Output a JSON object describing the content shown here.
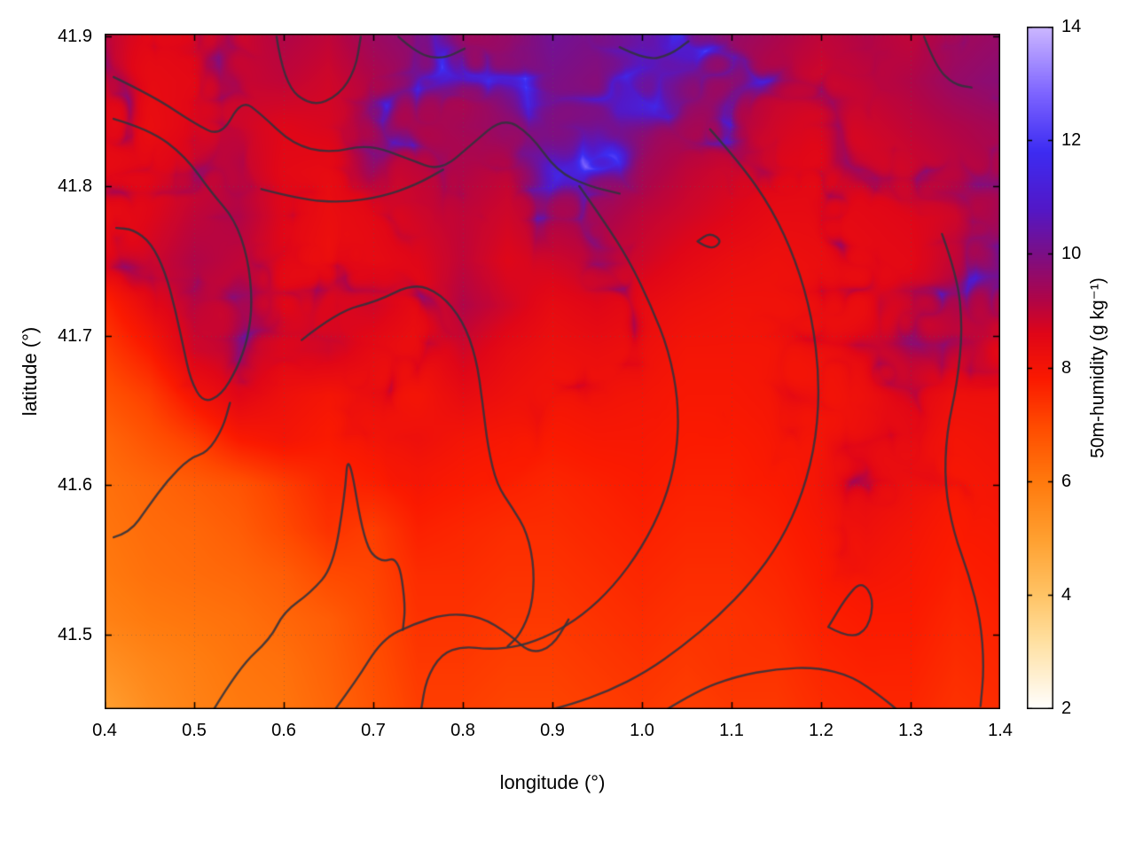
{
  "chart_data": {
    "type": "heatmap",
    "title": "",
    "xlabel": "longitude (°)",
    "ylabel": "latitude (°)",
    "colorbar_label": "50m-humidity (g kg⁻¹)",
    "xlim": [
      0.4,
      1.4
    ],
    "ylim": [
      41.45,
      41.902
    ],
    "clim": [
      2,
      14
    ],
    "grid": true,
    "xticks": [
      0.4,
      0.5,
      0.6,
      0.7,
      0.8,
      0.9,
      1.0,
      1.1,
      1.2,
      1.3,
      1.4
    ],
    "xtick_labels": [
      "0.4",
      "0.5",
      "0.6",
      "0.7",
      "0.8",
      "0.9",
      "1.0",
      "1.1",
      "1.2",
      "1.3",
      "1.4"
    ],
    "yticks": [
      41.5,
      41.6,
      41.7,
      41.8,
      41.9
    ],
    "ytick_labels": [
      "41.5",
      "41.6",
      "41.7",
      "41.8",
      "41.9"
    ],
    "cticks": [
      2,
      4,
      6,
      8,
      10,
      12,
      14
    ],
    "ctick_labels": [
      "2",
      "4",
      "6",
      "8",
      "10",
      "12",
      "14"
    ],
    "x": [
      0.4,
      0.45,
      0.5,
      0.55,
      0.6,
      0.65,
      0.7,
      0.75,
      0.8,
      0.85,
      0.9,
      0.95,
      1.0,
      1.05,
      1.1,
      1.15,
      1.2,
      1.25,
      1.3,
      1.35,
      1.4
    ],
    "y": [
      41.9,
      41.87,
      41.84,
      41.81,
      41.78,
      41.75,
      41.72,
      41.69,
      41.66,
      41.63,
      41.6,
      41.57,
      41.54,
      41.51,
      41.48,
      41.45
    ],
    "values": [
      [
        8.8,
        8.5,
        8.6,
        8.8,
        9.2,
        9.0,
        9.5,
        9.8,
        9.4,
        9.6,
        10.2,
        10.0,
        10.4,
        10.0,
        9.6,
        9.3,
        9.0,
        9.2,
        9.0,
        9.4,
        9.6
      ],
      [
        8.6,
        8.4,
        8.5,
        8.9,
        9.0,
        8.8,
        9.2,
        9.6,
        9.2,
        9.8,
        10.0,
        9.8,
        10.2,
        9.8,
        9.4,
        9.0,
        8.8,
        9.0,
        9.2,
        9.6,
        9.8
      ],
      [
        8.5,
        8.3,
        8.6,
        8.8,
        8.6,
        8.7,
        9.0,
        9.2,
        9.4,
        9.6,
        9.8,
        10.0,
        9.6,
        9.4,
        9.2,
        8.8,
        8.6,
        8.8,
        9.0,
        9.2,
        9.4
      ],
      [
        8.4,
        8.5,
        8.8,
        9.0,
        8.5,
        8.4,
        8.8,
        9.0,
        9.2,
        9.0,
        9.6,
        9.8,
        9.4,
        9.0,
        8.8,
        8.6,
        8.5,
        8.6,
        8.8,
        9.0,
        9.2
      ],
      [
        8.3,
        8.6,
        9.0,
        9.2,
        8.6,
        8.3,
        8.5,
        8.8,
        9.0,
        8.8,
        9.2,
        9.4,
        9.0,
        8.8,
        8.6,
        8.4,
        8.4,
        8.5,
        8.6,
        8.8,
        9.4
      ],
      [
        8.2,
        8.8,
        9.2,
        9.0,
        8.5,
        8.2,
        8.4,
        8.6,
        9.0,
        8.6,
        8.8,
        9.0,
        8.8,
        8.5,
        8.3,
        8.2,
        8.3,
        8.4,
        8.5,
        9.0,
        9.6
      ],
      [
        7.6,
        8.4,
        9.0,
        8.8,
        8.4,
        8.6,
        8.8,
        8.4,
        9.2,
        8.8,
        8.4,
        8.6,
        8.4,
        8.2,
        8.1,
        8.1,
        8.2,
        8.3,
        8.6,
        9.2,
        9.0
      ],
      [
        7.2,
        7.8,
        8.8,
        9.0,
        8.6,
        8.8,
        8.4,
        8.2,
        8.8,
        8.4,
        8.2,
        8.3,
        8.2,
        8.0,
        8.0,
        8.0,
        8.1,
        8.3,
        8.8,
        8.8,
        8.4
      ],
      [
        6.8,
        7.2,
        8.0,
        8.6,
        8.2,
        8.0,
        8.2,
        8.0,
        8.4,
        8.2,
        8.0,
        8.1,
        8.0,
        7.9,
        7.9,
        8.0,
        8.0,
        8.2,
        8.6,
        8.2,
        8.2
      ],
      [
        6.4,
        6.8,
        7.2,
        7.8,
        8.0,
        7.8,
        8.0,
        8.2,
        8.0,
        7.9,
        7.8,
        7.9,
        7.9,
        7.8,
        7.8,
        7.9,
        8.0,
        8.3,
        8.4,
        8.0,
        8.1
      ],
      [
        6.2,
        6.4,
        6.6,
        6.8,
        7.2,
        7.6,
        7.7,
        7.9,
        7.8,
        7.7,
        7.6,
        7.7,
        7.8,
        7.7,
        7.7,
        7.8,
        8.0,
        8.4,
        8.2,
        7.9,
        8.0
      ],
      [
        6.1,
        6.3,
        6.4,
        6.6,
        7.0,
        7.4,
        7.2,
        7.7,
        7.6,
        7.5,
        7.5,
        7.6,
        7.7,
        7.6,
        7.6,
        7.7,
        7.9,
        8.2,
        8.0,
        7.8,
        7.9
      ],
      [
        6.0,
        6.2,
        6.3,
        6.4,
        6.6,
        7.0,
        7.1,
        7.5,
        7.5,
        7.4,
        7.4,
        7.5,
        7.6,
        7.5,
        7.5,
        7.6,
        7.8,
        8.0,
        7.9,
        7.7,
        7.8
      ],
      [
        5.8,
        6.0,
        6.1,
        6.2,
        6.4,
        6.6,
        7.0,
        7.4,
        7.4,
        7.3,
        7.3,
        7.4,
        7.5,
        7.4,
        7.4,
        7.5,
        7.7,
        7.8,
        7.8,
        7.6,
        7.7
      ],
      [
        5.4,
        5.7,
        5.9,
        6.1,
        6.2,
        6.5,
        6.9,
        7.3,
        7.3,
        7.2,
        7.2,
        7.3,
        7.4,
        7.3,
        7.4,
        7.4,
        7.6,
        7.7,
        7.7,
        7.5,
        7.6
      ],
      [
        5.0,
        5.5,
        5.8,
        6.0,
        6.1,
        6.4,
        6.8,
        7.2,
        7.2,
        7.1,
        7.1,
        7.2,
        7.3,
        7.2,
        7.3,
        7.3,
        7.5,
        7.6,
        7.6,
        7.4,
        7.5
      ]
    ],
    "palette": [
      [
        2.0,
        "#ffffff"
      ],
      [
        3.2,
        "#ffe0a0"
      ],
      [
        4.0,
        "#ffc466"
      ],
      [
        5.0,
        "#ffa030"
      ],
      [
        6.0,
        "#ff7a0e"
      ],
      [
        7.0,
        "#ff4a00"
      ],
      [
        7.8,
        "#fb1a00"
      ],
      [
        8.6,
        "#e00618"
      ],
      [
        9.2,
        "#b00548"
      ],
      [
        10.0,
        "#7c0f86"
      ],
      [
        10.8,
        "#5318c8"
      ],
      [
        11.8,
        "#3d2cf2"
      ],
      [
        12.8,
        "#7c63ff"
      ],
      [
        14.0,
        "#cdb8ff"
      ]
    ],
    "contour_color": "#32323c",
    "contours": [
      [
        [
          0.592,
          41.9
        ],
        [
          0.6,
          41.868
        ],
        [
          0.632,
          41.853
        ],
        [
          0.662,
          41.861
        ],
        [
          0.68,
          41.878
        ],
        [
          0.686,
          41.9
        ]
      ],
      [
        [
          0.41,
          41.873
        ],
        [
          0.455,
          41.86
        ],
        [
          0.5,
          41.842
        ],
        [
          0.53,
          41.833
        ],
        [
          0.553,
          41.858
        ],
        [
          0.575,
          41.848
        ],
        [
          0.61,
          41.828
        ],
        [
          0.65,
          41.822
        ],
        [
          0.695,
          41.828
        ],
        [
          0.74,
          41.818
        ],
        [
          0.775,
          41.81
        ],
        [
          0.81,
          41.828
        ],
        [
          0.845,
          41.846
        ],
        [
          0.875,
          41.835
        ],
        [
          0.905,
          41.81
        ],
        [
          0.94,
          41.8
        ],
        [
          0.975,
          41.795
        ]
      ],
      [
        [
          0.41,
          41.845
        ],
        [
          0.45,
          41.838
        ],
        [
          0.49,
          41.82
        ],
        [
          0.52,
          41.795
        ],
        [
          0.545,
          41.778
        ],
        [
          0.56,
          41.752
        ],
        [
          0.565,
          41.722
        ],
        [
          0.56,
          41.698
        ],
        [
          0.548,
          41.678
        ],
        [
          0.53,
          41.66
        ],
        [
          0.51,
          41.655
        ],
        [
          0.496,
          41.67
        ],
        [
          0.488,
          41.692
        ],
        [
          0.479,
          41.717
        ],
        [
          0.468,
          41.742
        ],
        [
          0.452,
          41.762
        ],
        [
          0.432,
          41.771
        ],
        [
          0.413,
          41.772
        ]
      ],
      [
        [
          0.575,
          41.798
        ],
        [
          0.62,
          41.791
        ],
        [
          0.665,
          41.789
        ],
        [
          0.71,
          41.793
        ],
        [
          0.748,
          41.801
        ],
        [
          0.778,
          41.811
        ]
      ],
      [
        [
          0.62,
          41.697
        ],
        [
          0.66,
          41.716
        ],
        [
          0.705,
          41.723
        ],
        [
          0.745,
          41.735
        ],
        [
          0.775,
          41.728
        ],
        [
          0.8,
          41.71
        ],
        [
          0.815,
          41.685
        ],
        [
          0.822,
          41.655
        ],
        [
          0.828,
          41.625
        ],
        [
          0.838,
          41.6
        ],
        [
          0.855,
          41.585
        ],
        [
          0.872,
          41.568
        ],
        [
          0.88,
          41.543
        ],
        [
          0.877,
          41.518
        ],
        [
          0.864,
          41.5
        ],
        [
          0.85,
          41.492
        ]
      ],
      [
        [
          0.93,
          41.8
        ],
        [
          0.956,
          41.778
        ],
        [
          0.986,
          41.75
        ],
        [
          1.01,
          41.72
        ],
        [
          1.03,
          41.69
        ],
        [
          1.041,
          41.655
        ],
        [
          1.039,
          41.62
        ],
        [
          1.025,
          41.588
        ],
        [
          1.0,
          41.558
        ],
        [
          0.968,
          41.532
        ],
        [
          0.934,
          41.513
        ],
        [
          0.899,
          41.5
        ],
        [
          0.864,
          41.492
        ],
        [
          0.83,
          41.49
        ],
        [
          0.8,
          41.492
        ],
        [
          0.776,
          41.487
        ],
        [
          0.759,
          41.47
        ],
        [
          0.753,
          41.448
        ]
      ],
      [
        [
          1.076,
          41.838
        ],
        [
          1.11,
          41.815
        ],
        [
          1.145,
          41.785
        ],
        [
          1.172,
          41.75
        ],
        [
          1.19,
          41.712
        ],
        [
          1.198,
          41.672
        ],
        [
          1.195,
          41.632
        ],
        [
          1.18,
          41.595
        ],
        [
          1.155,
          41.562
        ],
        [
          1.122,
          41.535
        ],
        [
          1.085,
          41.512
        ],
        [
          1.045,
          41.492
        ],
        [
          1.005,
          41.475
        ],
        [
          0.962,
          41.462
        ],
        [
          0.92,
          41.453
        ],
        [
          0.886,
          41.448
        ]
      ],
      [
        [
          0.41,
          41.565
        ],
        [
          0.428,
          41.568
        ],
        [
          0.448,
          41.585
        ],
        [
          0.47,
          41.603
        ],
        [
          0.495,
          41.618
        ],
        [
          0.515,
          41.622
        ],
        [
          0.532,
          41.638
        ],
        [
          0.54,
          41.655
        ]
      ],
      [
        [
          0.52,
          41.448
        ],
        [
          0.55,
          41.478
        ],
        [
          0.585,
          41.497
        ],
        [
          0.6,
          41.515
        ],
        [
          0.63,
          41.528
        ],
        [
          0.655,
          41.545
        ],
        [
          0.668,
          41.592
        ],
        [
          0.672,
          41.625
        ],
        [
          0.69,
          41.56
        ],
        [
          0.708,
          41.548
        ],
        [
          0.728,
          41.552
        ],
        [
          0.736,
          41.52
        ],
        [
          0.733,
          41.503
        ]
      ],
      [
        [
          0.655,
          41.448
        ],
        [
          0.68,
          41.468
        ],
        [
          0.71,
          41.497
        ],
        [
          0.745,
          41.507
        ],
        [
          0.782,
          41.514
        ],
        [
          0.82,
          41.512
        ],
        [
          0.852,
          41.5
        ],
        [
          0.876,
          41.487
        ],
        [
          0.9,
          41.492
        ],
        [
          0.918,
          41.51
        ]
      ],
      [
        [
          1.335,
          41.768
        ],
        [
          1.352,
          41.74
        ],
        [
          1.358,
          41.705
        ],
        [
          1.352,
          41.668
        ],
        [
          1.34,
          41.635
        ],
        [
          1.338,
          41.6
        ],
        [
          1.348,
          41.568
        ],
        [
          1.365,
          41.54
        ],
        [
          1.378,
          41.51
        ],
        [
          1.382,
          41.478
        ],
        [
          1.378,
          41.452
        ]
      ],
      [
        [
          1.02,
          41.447
        ],
        [
          1.06,
          41.462
        ],
        [
          1.105,
          41.472
        ],
        [
          1.15,
          41.477
        ],
        [
          1.195,
          41.478
        ],
        [
          1.235,
          41.472
        ],
        [
          1.268,
          41.458
        ],
        [
          1.29,
          41.447
        ]
      ],
      [
        [
          1.208,
          41.505
        ],
        [
          1.232,
          41.497
        ],
        [
          1.253,
          41.504
        ],
        [
          1.259,
          41.524
        ],
        [
          1.245,
          41.536
        ],
        [
          1.227,
          41.524
        ],
        [
          1.208,
          41.505
        ]
      ],
      [
        [
          1.315,
          41.9
        ],
        [
          1.328,
          41.88
        ],
        [
          1.348,
          41.868
        ],
        [
          1.368,
          41.866
        ]
      ],
      [
        [
          0.975,
          41.893
        ],
        [
          1.005,
          41.884
        ],
        [
          1.032,
          41.888
        ],
        [
          1.052,
          41.897
        ]
      ],
      [
        [
          0.728,
          41.9
        ],
        [
          0.75,
          41.888
        ],
        [
          0.778,
          41.885
        ],
        [
          0.802,
          41.892
        ]
      ],
      [
        [
          1.062,
          41.763
        ],
        [
          1.076,
          41.757
        ],
        [
          1.09,
          41.763
        ],
        [
          1.076,
          41.769
        ],
        [
          1.062,
          41.763
        ]
      ]
    ]
  }
}
